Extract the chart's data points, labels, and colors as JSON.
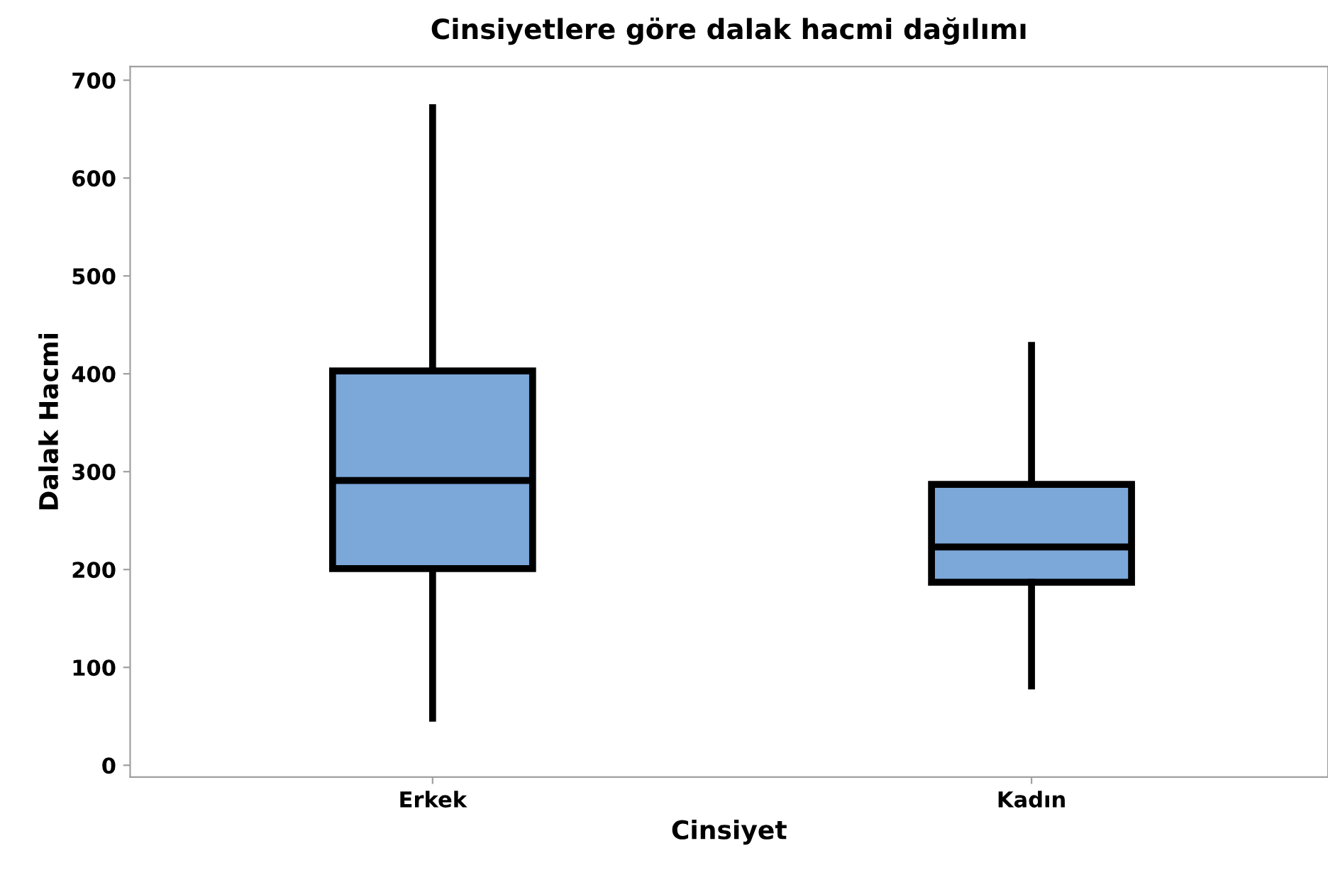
{
  "chart_data": {
    "type": "box",
    "title": "Cinsiyetlere göre dalak hacmi dağılımı",
    "xlabel": "Cinsiyet",
    "ylabel": "Dalak Hacmi",
    "categories": [
      "Erkek",
      "Kadın"
    ],
    "boxes": [
      {
        "low": 48,
        "q1": 201,
        "median": 291,
        "q3": 403,
        "high": 672
      },
      {
        "low": 81,
        "q1": 187,
        "median": 223,
        "q3": 287,
        "high": 429
      }
    ],
    "color": "#7ba7d9",
    "ylim": [
      -12,
      714
    ],
    "yticks": [
      0,
      100,
      200,
      300,
      400,
      500,
      600,
      700
    ],
    "grid": false
  }
}
